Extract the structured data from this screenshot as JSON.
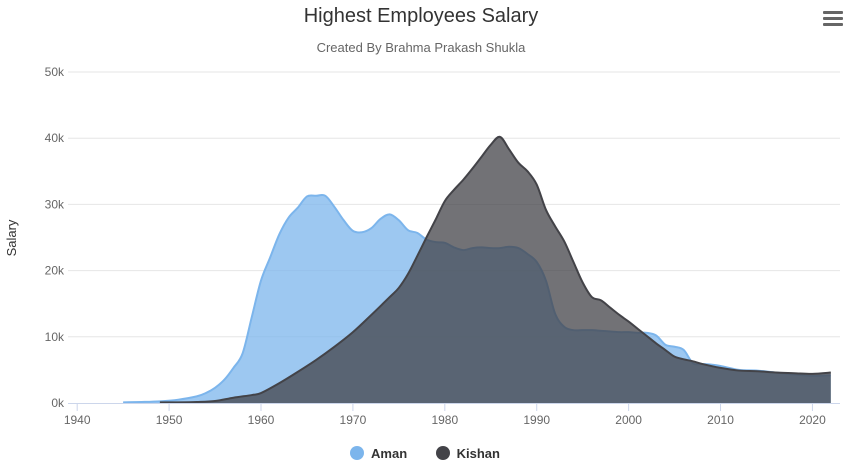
{
  "chart_data": {
    "type": "area",
    "title": "Highest Employees Salary",
    "subtitle": "Created By Brahma Prakash Shukla",
    "xlabel": "",
    "ylabel": "Salary",
    "xlim": [
      1939,
      2023
    ],
    "ylim": [
      0,
      50000
    ],
    "x_ticks": [
      1940,
      1950,
      1960,
      1970,
      1980,
      1990,
      2000,
      2010,
      2020
    ],
    "x_tick_labels": [
      "1940",
      "1950",
      "1960",
      "1970",
      "1980",
      "1990",
      "2000",
      "2010",
      "2020"
    ],
    "y_ticks": [
      0,
      10000,
      20000,
      30000,
      40000,
      50000
    ],
    "y_tick_labels": [
      "0k",
      "10k",
      "20k",
      "30k",
      "40k",
      "50k"
    ],
    "grid": true,
    "legend_position": "bottom-center",
    "series": [
      {
        "name": "Aman",
        "color": "#7cb5ec",
        "points": [
          [
            1945,
            100
          ],
          [
            1947,
            150
          ],
          [
            1949,
            250
          ],
          [
            1951,
            500
          ],
          [
            1953,
            1000
          ],
          [
            1954,
            1500
          ],
          [
            1955,
            2300
          ],
          [
            1956,
            3500
          ],
          [
            1957,
            5300
          ],
          [
            1958,
            7500
          ],
          [
            1959,
            13000
          ],
          [
            1960,
            18500
          ],
          [
            1961,
            22000
          ],
          [
            1962,
            25500
          ],
          [
            1963,
            28000
          ],
          [
            1964,
            29500
          ],
          [
            1965,
            31200
          ],
          [
            1966,
            31300
          ],
          [
            1967,
            31300
          ],
          [
            1968,
            29600
          ],
          [
            1969,
            27600
          ],
          [
            1970,
            26000
          ],
          [
            1971,
            25800
          ],
          [
            1972,
            26400
          ],
          [
            1973,
            27800
          ],
          [
            1974,
            28500
          ],
          [
            1975,
            27600
          ],
          [
            1976,
            26100
          ],
          [
            1977,
            25700
          ],
          [
            1978,
            24700
          ],
          [
            1979,
            24300
          ],
          [
            1980,
            24200
          ],
          [
            1981,
            23500
          ],
          [
            1982,
            23100
          ],
          [
            1983,
            23400
          ],
          [
            1984,
            23500
          ],
          [
            1985,
            23400
          ],
          [
            1986,
            23400
          ],
          [
            1987,
            23600
          ],
          [
            1988,
            23400
          ],
          [
            1989,
            22500
          ],
          [
            1990,
            21300
          ],
          [
            1991,
            18500
          ],
          [
            1992,
            13500
          ],
          [
            1993,
            11500
          ],
          [
            1994,
            11000
          ],
          [
            1995,
            11000
          ],
          [
            1996,
            11000
          ],
          [
            1997,
            10900
          ],
          [
            1998,
            10800
          ],
          [
            1999,
            10700
          ],
          [
            2000,
            10700
          ],
          [
            2001,
            10600
          ],
          [
            2002,
            10600
          ],
          [
            2003,
            10200
          ],
          [
            2004,
            8800
          ],
          [
            2005,
            8500
          ],
          [
            2006,
            8000
          ],
          [
            2007,
            6000
          ],
          [
            2008,
            5900
          ],
          [
            2009,
            5800
          ],
          [
            2010,
            5600
          ],
          [
            2012,
            5000
          ],
          [
            2014,
            4900
          ],
          [
            2016,
            4600
          ],
          [
            2018,
            4300
          ],
          [
            2020,
            4100
          ],
          [
            2022,
            4200
          ]
        ]
      },
      {
        "name": "Kishan",
        "color": "#434348",
        "points": [
          [
            1949,
            100
          ],
          [
            1951,
            100
          ],
          [
            1953,
            150
          ],
          [
            1955,
            300
          ],
          [
            1957,
            800
          ],
          [
            1959,
            1200
          ],
          [
            1960,
            1500
          ],
          [
            1962,
            3000
          ],
          [
            1964,
            4700
          ],
          [
            1966,
            6500
          ],
          [
            1968,
            8500
          ],
          [
            1970,
            10700
          ],
          [
            1972,
            13300
          ],
          [
            1974,
            16000
          ],
          [
            1975,
            17400
          ],
          [
            1976,
            19500
          ],
          [
            1977,
            22200
          ],
          [
            1978,
            25000
          ],
          [
            1979,
            27700
          ],
          [
            1980,
            30500
          ],
          [
            1981,
            32200
          ],
          [
            1982,
            33700
          ],
          [
            1983,
            35400
          ],
          [
            1984,
            37200
          ],
          [
            1985,
            39000
          ],
          [
            1986,
            40200
          ],
          [
            1987,
            38300
          ],
          [
            1988,
            36300
          ],
          [
            1989,
            35000
          ],
          [
            1990,
            33000
          ],
          [
            1991,
            29200
          ],
          [
            1992,
            26700
          ],
          [
            1993,
            24400
          ],
          [
            1994,
            21300
          ],
          [
            1995,
            18200
          ],
          [
            1996,
            16000
          ],
          [
            1997,
            15500
          ],
          [
            1998,
            14400
          ],
          [
            1999,
            13300
          ],
          [
            2000,
            12300
          ],
          [
            2001,
            11200
          ],
          [
            2002,
            10100
          ],
          [
            2003,
            9000
          ],
          [
            2004,
            8000
          ],
          [
            2005,
            7000
          ],
          [
            2006,
            6600
          ],
          [
            2007,
            6300
          ],
          [
            2008,
            5900
          ],
          [
            2010,
            5300
          ],
          [
            2012,
            4900
          ],
          [
            2014,
            4800
          ],
          [
            2016,
            4600
          ],
          [
            2018,
            4500
          ],
          [
            2020,
            4400
          ],
          [
            2022,
            4600
          ]
        ]
      }
    ]
  }
}
